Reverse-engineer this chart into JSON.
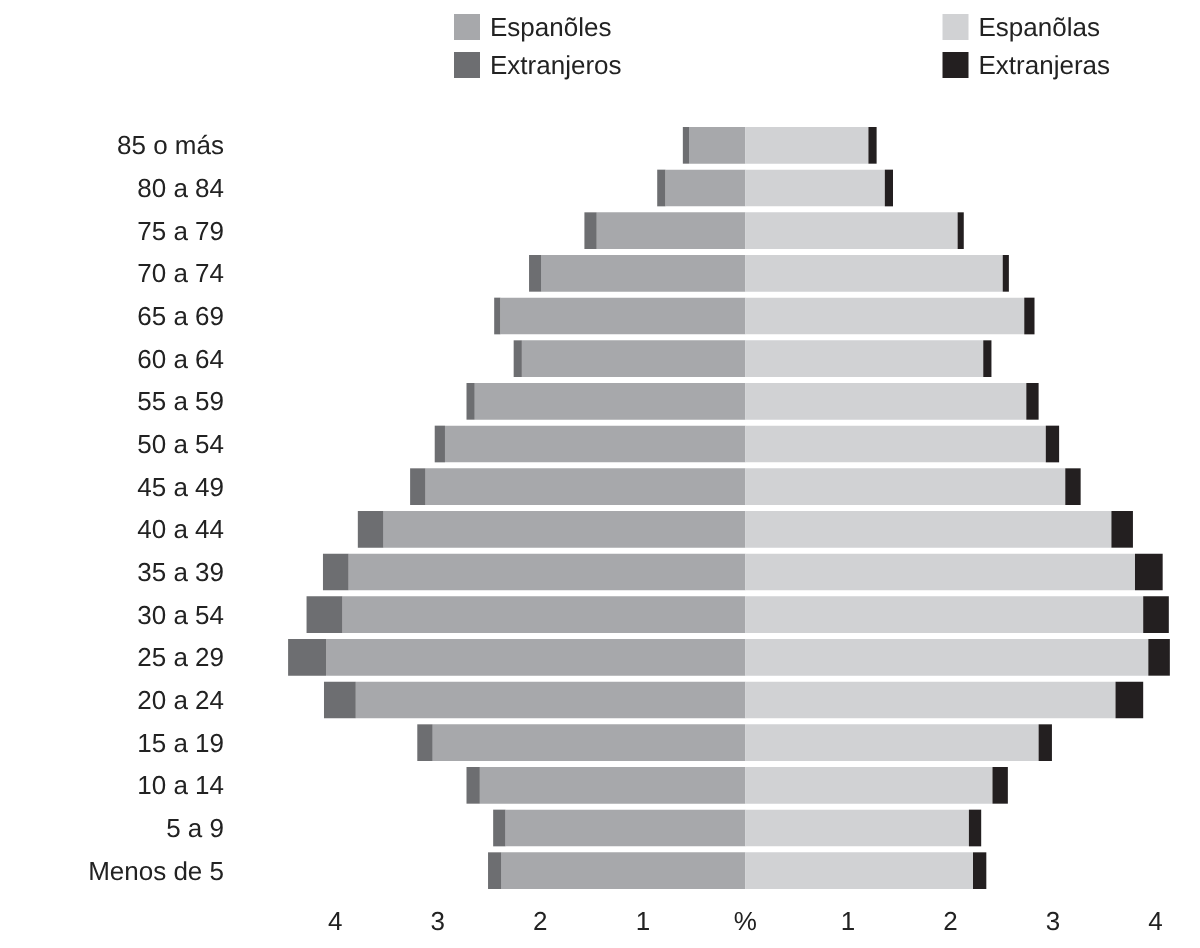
{
  "chart_data": {
    "type": "bar",
    "orientation": "horizontal",
    "stacked": true,
    "categories": [
      "85 o más",
      "80 a 84",
      "75 a 79",
      "70 a 74",
      "65 a 69",
      "60 a 64",
      "55 a 59",
      "50 a 54",
      "45 a 49",
      "40 a 44",
      "35 a 39",
      "30 a 54",
      "25 a 29",
      "20 a 24",
      "15 a 19",
      "10 a 14",
      "5 a 9",
      "Menos de 5"
    ],
    "series": [
      {
        "name": "Espanõles",
        "color": "#a7a8ab",
        "values": [
          -0.55,
          -0.78,
          -1.45,
          -1.99,
          -2.39,
          -2.18,
          -2.64,
          -2.93,
          -3.12,
          -3.53,
          -3.87,
          -3.93,
          -4.09,
          -3.8,
          -3.05,
          -2.59,
          -2.34,
          -2.38
        ]
      },
      {
        "name": "Extranjeros",
        "color": "#6d6e71",
        "values": [
          -0.06,
          -0.08,
          -0.12,
          -0.12,
          -0.06,
          -0.08,
          -0.08,
          -0.1,
          -0.15,
          -0.25,
          -0.25,
          -0.35,
          -0.37,
          -0.31,
          -0.15,
          -0.13,
          -0.12,
          -0.13
        ]
      },
      {
        "name": "Espanõlas",
        "color": "#d1d2d4",
        "values": [
          1.2,
          1.36,
          2.07,
          2.51,
          2.72,
          2.32,
          2.74,
          2.93,
          3.12,
          3.57,
          3.8,
          3.88,
          3.93,
          3.61,
          2.86,
          2.41,
          2.18,
          2.22
        ]
      },
      {
        "name": "Extranjeras",
        "color": "#231f20",
        "values": [
          0.08,
          0.08,
          0.06,
          0.06,
          0.1,
          0.08,
          0.12,
          0.13,
          0.15,
          0.21,
          0.27,
          0.25,
          0.21,
          0.27,
          0.13,
          0.15,
          0.12,
          0.13
        ]
      }
    ],
    "xlim": [
      -4.5,
      4.2
    ],
    "xticks": [
      {
        "value": -4,
        "label": "4"
      },
      {
        "value": -3,
        "label": "3"
      },
      {
        "value": -2,
        "label": "2"
      },
      {
        "value": -1,
        "label": "1"
      },
      {
        "value": 0,
        "label": "%"
      },
      1,
      2,
      3,
      4
    ],
    "legend": "top",
    "grid": false
  }
}
